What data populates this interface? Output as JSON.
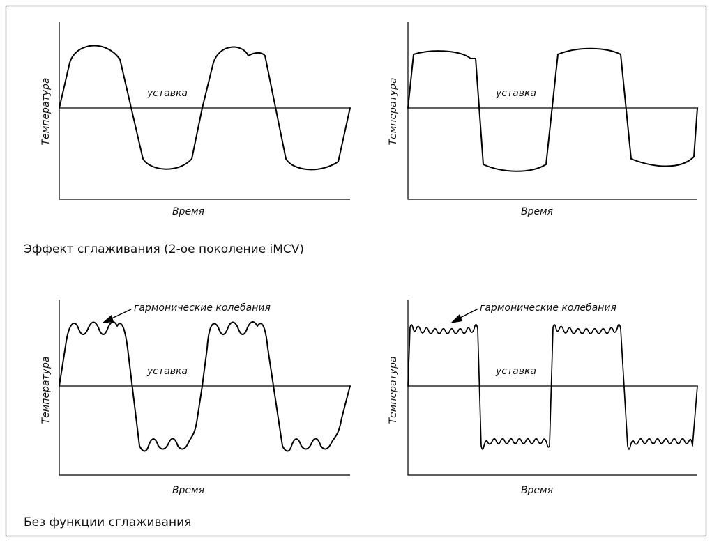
{
  "diagrams": [
    {
      "id": "smooth-sine",
      "ylabel": "Температура",
      "xlabel": "Время",
      "setpoint_label": "уставка",
      "annotation": ""
    },
    {
      "id": "smooth-square",
      "ylabel": "Температура",
      "xlabel": "Время",
      "setpoint_label": "уставка",
      "annotation": ""
    },
    {
      "id": "harm-sine",
      "ylabel": "Температура",
      "xlabel": "Время",
      "setpoint_label": "уставка",
      "annotation": "гармонические колебания"
    },
    {
      "id": "harm-square",
      "ylabel": "Температура",
      "xlabel": "Время",
      "setpoint_label": "уставка",
      "annotation": "гармонические колебания"
    }
  ],
  "captions": {
    "smoothing": "Эффект сглаживания (2-ое поколение iMCV)",
    "no_smoothing": "Без функции сглаживания"
  }
}
